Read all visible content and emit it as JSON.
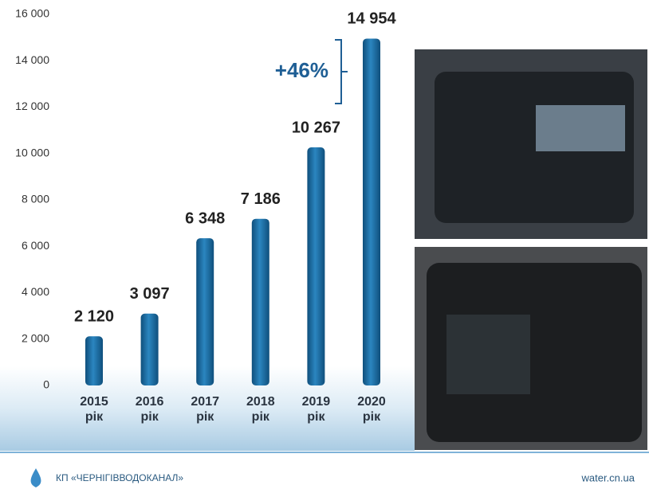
{
  "chart_data": {
    "type": "bar",
    "categories": [
      "2015 рік",
      "2016 рік",
      "2017 рік",
      "2018 рік",
      "2019 рік",
      "2020 рік"
    ],
    "values": [
      2120,
      3097,
      6348,
      7186,
      10267,
      14954
    ],
    "value_labels": [
      "2 120",
      "3 097",
      "6 348",
      "7 186",
      "10 267",
      "14 954"
    ],
    "color": "#1f6fa3",
    "ylim": [
      0,
      16000
    ],
    "yticks": [
      0,
      {
        "value": 2000,
        "label": "2 000"
      },
      {
        "value": 4000,
        "label": "4 000"
      },
      {
        "value": 6000,
        "label": "6 000"
      },
      {
        "value": 8000,
        "label": "8 000"
      },
      {
        "value": 10000,
        "label": "10 000"
      },
      {
        "value": 12000,
        "label": "12 000"
      },
      {
        "value": 14000,
        "label": "14 000"
      },
      {
        "value": 16000,
        "label": "16 000"
      }
    ],
    "annotation": "+46%"
  },
  "footer": {
    "organization": "КП «ЧЕРНІГІВВОДОКАНАЛ»",
    "website": "water.cn.ua"
  }
}
